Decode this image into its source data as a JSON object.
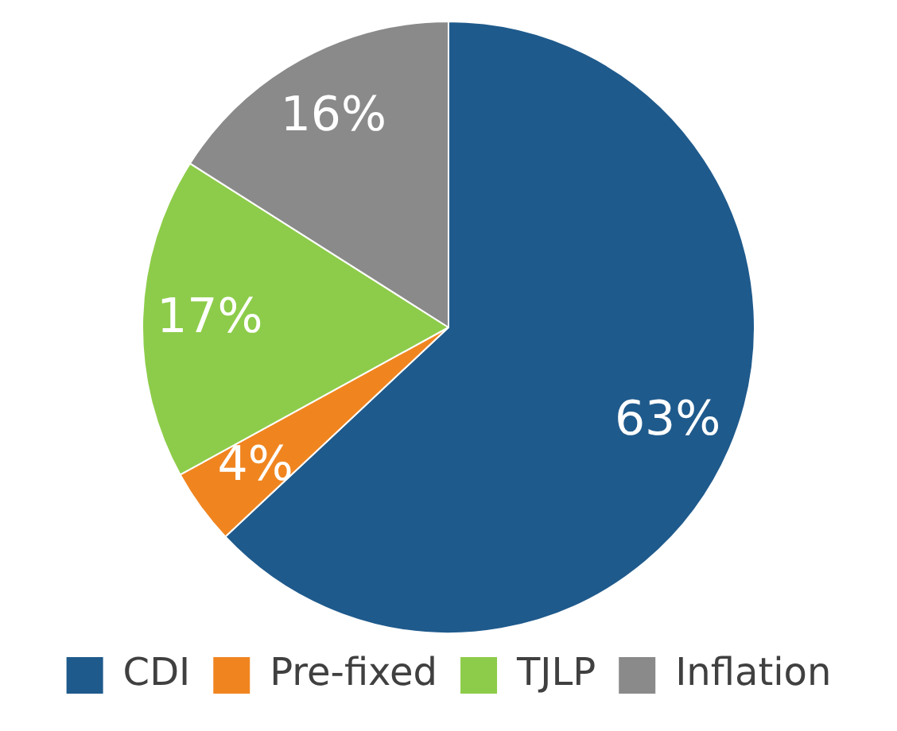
{
  "chart_data": {
    "type": "pie",
    "categories": [
      "CDI",
      "Pre-fixed",
      "TJLP",
      "Inflation"
    ],
    "values": [
      63,
      4,
      17,
      16
    ],
    "colors": [
      "#1f5a8c",
      "#f08520",
      "#8dcc4a",
      "#8a8a8a"
    ],
    "value_labels": [
      "63%",
      "4%",
      "17%",
      "16%"
    ],
    "legend": "bottom"
  }
}
